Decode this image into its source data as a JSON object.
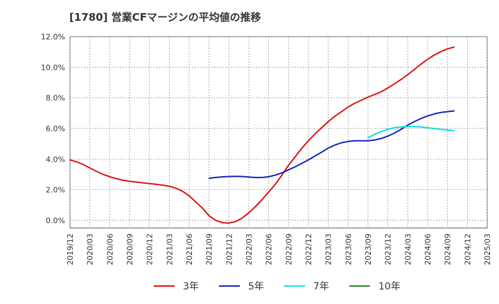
{
  "chart_data": {
    "type": "line",
    "title": "[1780]  営業CFマージンの平均値の推移",
    "xlabel": "",
    "ylabel": "",
    "ylim": [
      -0.5,
      12.0
    ],
    "yticks": [
      "12.0%",
      "10.0%",
      "8.0%",
      "6.0%",
      "4.0%",
      "2.0%",
      "0.0%"
    ],
    "ytick_values": [
      12,
      10,
      8,
      6,
      4,
      2,
      0
    ],
    "xticks": [
      "2019/12",
      "2020/03",
      "2020/06",
      "2020/09",
      "2020/12",
      "2021/03",
      "2021/06",
      "2021/09",
      "2021/12",
      "2022/03",
      "2022/06",
      "2022/09",
      "2022/12",
      "2023/03",
      "2023/06",
      "2023/09",
      "2023/12",
      "2024/03",
      "2024/06",
      "2024/09",
      "2024/12",
      "2025/03"
    ],
    "grid": true,
    "legend_position": "bottom",
    "series": [
      {
        "name": "3年",
        "color": "#dd1111",
        "points": [
          [
            "2019/12",
            3.95
          ],
          [
            "2020/01",
            3.82
          ],
          [
            "2020/02",
            3.65
          ],
          [
            "2020/03",
            3.42
          ],
          [
            "2020/04",
            3.2
          ],
          [
            "2020/05",
            3.0
          ],
          [
            "2020/06",
            2.85
          ],
          [
            "2020/07",
            2.72
          ],
          [
            "2020/08",
            2.62
          ],
          [
            "2020/09",
            2.55
          ],
          [
            "2020/10",
            2.5
          ],
          [
            "2020/11",
            2.45
          ],
          [
            "2020/12",
            2.4
          ],
          [
            "2021/01",
            2.35
          ],
          [
            "2021/02",
            2.3
          ],
          [
            "2021/03",
            2.23
          ],
          [
            "2021/04",
            2.1
          ],
          [
            "2021/05",
            1.9
          ],
          [
            "2021/06",
            1.6
          ],
          [
            "2021/07",
            1.2
          ],
          [
            "2021/08",
            0.8
          ],
          [
            "2021/09",
            0.3
          ],
          [
            "2021/10",
            0.0
          ],
          [
            "2021/11",
            -0.15
          ],
          [
            "2021/12",
            -0.18
          ],
          [
            "2022/01",
            -0.08
          ],
          [
            "2022/02",
            0.15
          ],
          [
            "2022/03",
            0.5
          ],
          [
            "2022/04",
            0.9
          ],
          [
            "2022/05",
            1.35
          ],
          [
            "2022/06",
            1.85
          ],
          [
            "2022/07",
            2.35
          ],
          [
            "2022/08",
            2.95
          ],
          [
            "2022/09",
            3.6
          ],
          [
            "2022/10",
            4.15
          ],
          [
            "2022/11",
            4.7
          ],
          [
            "2022/12",
            5.2
          ],
          [
            "2023/01",
            5.65
          ],
          [
            "2023/02",
            6.05
          ],
          [
            "2023/03",
            6.45
          ],
          [
            "2023/04",
            6.8
          ],
          [
            "2023/05",
            7.1
          ],
          [
            "2023/06",
            7.4
          ],
          [
            "2023/07",
            7.65
          ],
          [
            "2023/08",
            7.85
          ],
          [
            "2023/09",
            8.05
          ],
          [
            "2023/10",
            8.22
          ],
          [
            "2023/11",
            8.4
          ],
          [
            "2023/12",
            8.65
          ],
          [
            "2024/01",
            8.92
          ],
          [
            "2024/02",
            9.2
          ],
          [
            "2024/03",
            9.52
          ],
          [
            "2024/04",
            9.85
          ],
          [
            "2024/05",
            10.2
          ],
          [
            "2024/06",
            10.52
          ],
          [
            "2024/07",
            10.8
          ],
          [
            "2024/08",
            11.02
          ],
          [
            "2024/09",
            11.2
          ],
          [
            "2024/10",
            11.32
          ]
        ]
      },
      {
        "name": "5年",
        "color": "#1122bb",
        "points": [
          [
            "2021/09",
            2.75
          ],
          [
            "2021/10",
            2.8
          ],
          [
            "2021/11",
            2.84
          ],
          [
            "2021/12",
            2.86
          ],
          [
            "2022/01",
            2.87
          ],
          [
            "2022/02",
            2.86
          ],
          [
            "2022/03",
            2.83
          ],
          [
            "2022/04",
            2.8
          ],
          [
            "2022/05",
            2.8
          ],
          [
            "2022/06",
            2.85
          ],
          [
            "2022/07",
            2.95
          ],
          [
            "2022/08",
            3.1
          ],
          [
            "2022/09",
            3.3
          ],
          [
            "2022/10",
            3.5
          ],
          [
            "2022/11",
            3.72
          ],
          [
            "2022/12",
            3.95
          ],
          [
            "2023/01",
            4.2
          ],
          [
            "2023/02",
            4.45
          ],
          [
            "2023/03",
            4.72
          ],
          [
            "2023/04",
            4.92
          ],
          [
            "2023/05",
            5.07
          ],
          [
            "2023/06",
            5.15
          ],
          [
            "2023/07",
            5.2
          ],
          [
            "2023/08",
            5.2
          ],
          [
            "2023/09",
            5.2
          ],
          [
            "2023/10",
            5.25
          ],
          [
            "2023/11",
            5.35
          ],
          [
            "2023/12",
            5.5
          ],
          [
            "2024/01",
            5.7
          ],
          [
            "2024/02",
            5.95
          ],
          [
            "2024/03",
            6.22
          ],
          [
            "2024/04",
            6.45
          ],
          [
            "2024/05",
            6.65
          ],
          [
            "2024/06",
            6.82
          ],
          [
            "2024/07",
            6.95
          ],
          [
            "2024/08",
            7.05
          ],
          [
            "2024/09",
            7.1
          ],
          [
            "2024/10",
            7.15
          ]
        ]
      },
      {
        "name": "7年",
        "color": "#11dddd",
        "points": [
          [
            "2023/09",
            5.4
          ],
          [
            "2023/10",
            5.62
          ],
          [
            "2023/11",
            5.8
          ],
          [
            "2023/12",
            5.95
          ],
          [
            "2024/01",
            6.05
          ],
          [
            "2024/02",
            6.1
          ],
          [
            "2024/03",
            6.12
          ],
          [
            "2024/04",
            6.12
          ],
          [
            "2024/05",
            6.1
          ],
          [
            "2024/06",
            6.05
          ],
          [
            "2024/07",
            6.0
          ],
          [
            "2024/08",
            5.95
          ],
          [
            "2024/09",
            5.9
          ],
          [
            "2024/10",
            5.85
          ]
        ]
      },
      {
        "name": "10年",
        "color": "#228822",
        "points": []
      }
    ]
  }
}
